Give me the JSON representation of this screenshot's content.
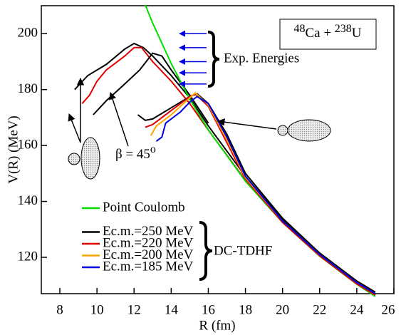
{
  "chart_data": {
    "type": "line",
    "x_label": "R (fm)",
    "y_label": "V(R) (MeV)",
    "xlim": [
      7,
      26
    ],
    "xticks": [
      8,
      10,
      12,
      14,
      16,
      18,
      20,
      22,
      24,
      26
    ],
    "ylim": [
      107,
      210
    ],
    "yticks": [
      120,
      140,
      160,
      180,
      200
    ],
    "series": [
      {
        "name": "Point Coulomb",
        "color": "#00e000",
        "x": [
          12.6,
          13,
          14,
          15,
          16,
          18,
          20,
          22,
          24,
          25
        ],
        "values": [
          210.3,
          203.8,
          189.3,
          176.6,
          165.6,
          147.2,
          132.5,
          120.4,
          110.4,
          106
        ]
      },
      {
        "name": "Ec.m.=250 MeV",
        "color": "#000000",
        "x": [
          12.2,
          12.6,
          13,
          14,
          15,
          15.4,
          16,
          17,
          18,
          20,
          22,
          24,
          25
        ],
        "values": [
          171,
          169,
          169.5,
          173.5,
          177.5,
          178.5,
          175,
          164,
          150,
          134,
          121.5,
          111.5,
          107.5
        ]
      },
      {
        "name": "Ec.m.=220 MeV",
        "color": "#e00000",
        "x": [
          12.6,
          13,
          14,
          15,
          15.3,
          16,
          17,
          18,
          20,
          22,
          24,
          25
        ],
        "values": [
          166.5,
          167.5,
          172.5,
          177.5,
          178.5,
          174,
          161,
          148,
          132.5,
          120.5,
          110.5,
          106.5
        ]
      },
      {
        "name": "Ec.m.=200 MeV",
        "color": "#ffa500",
        "x": [
          12.9,
          13.2,
          14,
          15,
          15.3,
          16,
          17,
          18,
          20,
          22,
          24,
          25
        ],
        "values": [
          163.5,
          167,
          171,
          177,
          178.8,
          174.5,
          162,
          148.5,
          133,
          121,
          111,
          107
        ]
      },
      {
        "name": "Ec.m.=185 MeV",
        "color": "#0000e0",
        "x": [
          13.2,
          13.5,
          13.7,
          14.5,
          15,
          15.4,
          16,
          17,
          18,
          20,
          22,
          24,
          25
        ],
        "values": [
          161.5,
          163,
          168,
          172,
          175.5,
          177.5,
          175,
          163,
          149,
          133,
          121,
          111,
          107
        ]
      }
    ],
    "beta_45_curves": [
      {
        "color": "#000000",
        "x": [
          8.8,
          9.5,
          10.5,
          11.5,
          12,
          12.5,
          13,
          14,
          15,
          16,
          18,
          20,
          22,
          24,
          25
        ],
        "values": [
          180,
          185,
          189,
          194.5,
          196.5,
          195,
          192,
          185,
          177,
          167,
          149,
          133.5,
          121.5,
          111.5,
          107.5
        ]
      },
      {
        "color": "#e00000",
        "x": [
          9.2,
          9.6,
          10,
          10.5,
          11.5,
          12,
          12.4,
          13,
          14,
          15,
          16,
          18,
          20,
          22,
          24,
          25
        ],
        "values": [
          175,
          178,
          183,
          187,
          192,
          195,
          195,
          190,
          183,
          175,
          165.5,
          147.5,
          132.5,
          120.5,
          110.5,
          106.5
        ]
      },
      {
        "color": "#000000",
        "x": [
          9.8,
          10.5,
          11.5,
          12.3,
          13,
          13.5,
          14,
          15,
          16
        ],
        "values": [
          171,
          176,
          182,
          187,
          193,
          192,
          187,
          178,
          168
        ]
      }
    ],
    "exp_energies": [
      200,
      195,
      190,
      186,
      182
    ],
    "exp_energies_label": "Exp. Energies",
    "dc_tdhf_label": "DC-TDHF",
    "beta_label": "β = 45",
    "beta_degree": "o",
    "reaction": {
      "a_mass": "48",
      "a": "Ca + ",
      "b_mass": "238",
      "b": "U"
    }
  }
}
